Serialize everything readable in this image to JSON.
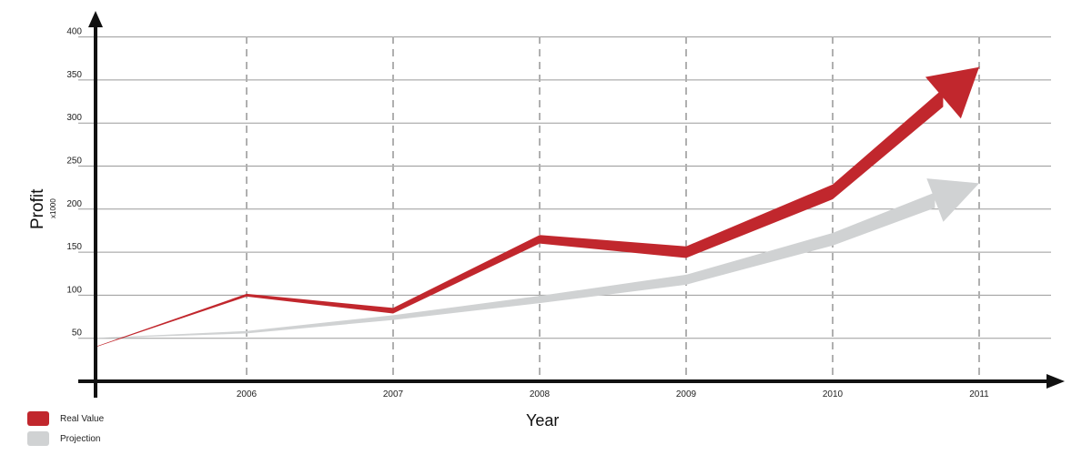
{
  "chart_data": {
    "type": "line",
    "xlabel": "Year",
    "ylabel": "Profit",
    "ylabel_unit": "x1000",
    "categories": [
      "2006",
      "2007",
      "2008",
      "2009",
      "2010",
      "2011"
    ],
    "yticks": [
      50,
      100,
      150,
      200,
      250,
      300,
      350,
      400
    ],
    "ylim": [
      0,
      400
    ],
    "grid": true,
    "legend_position": "bottom-left",
    "series": [
      {
        "name": "Real Value",
        "color": "#c1272d",
        "start_value": 40,
        "values": [
          100,
          82,
          165,
          150,
          220,
          365
        ]
      },
      {
        "name": "Projection",
        "color": "#d0d2d3",
        "start_value": 50,
        "values": [
          57,
          74,
          95,
          118,
          165,
          230
        ]
      }
    ]
  }
}
